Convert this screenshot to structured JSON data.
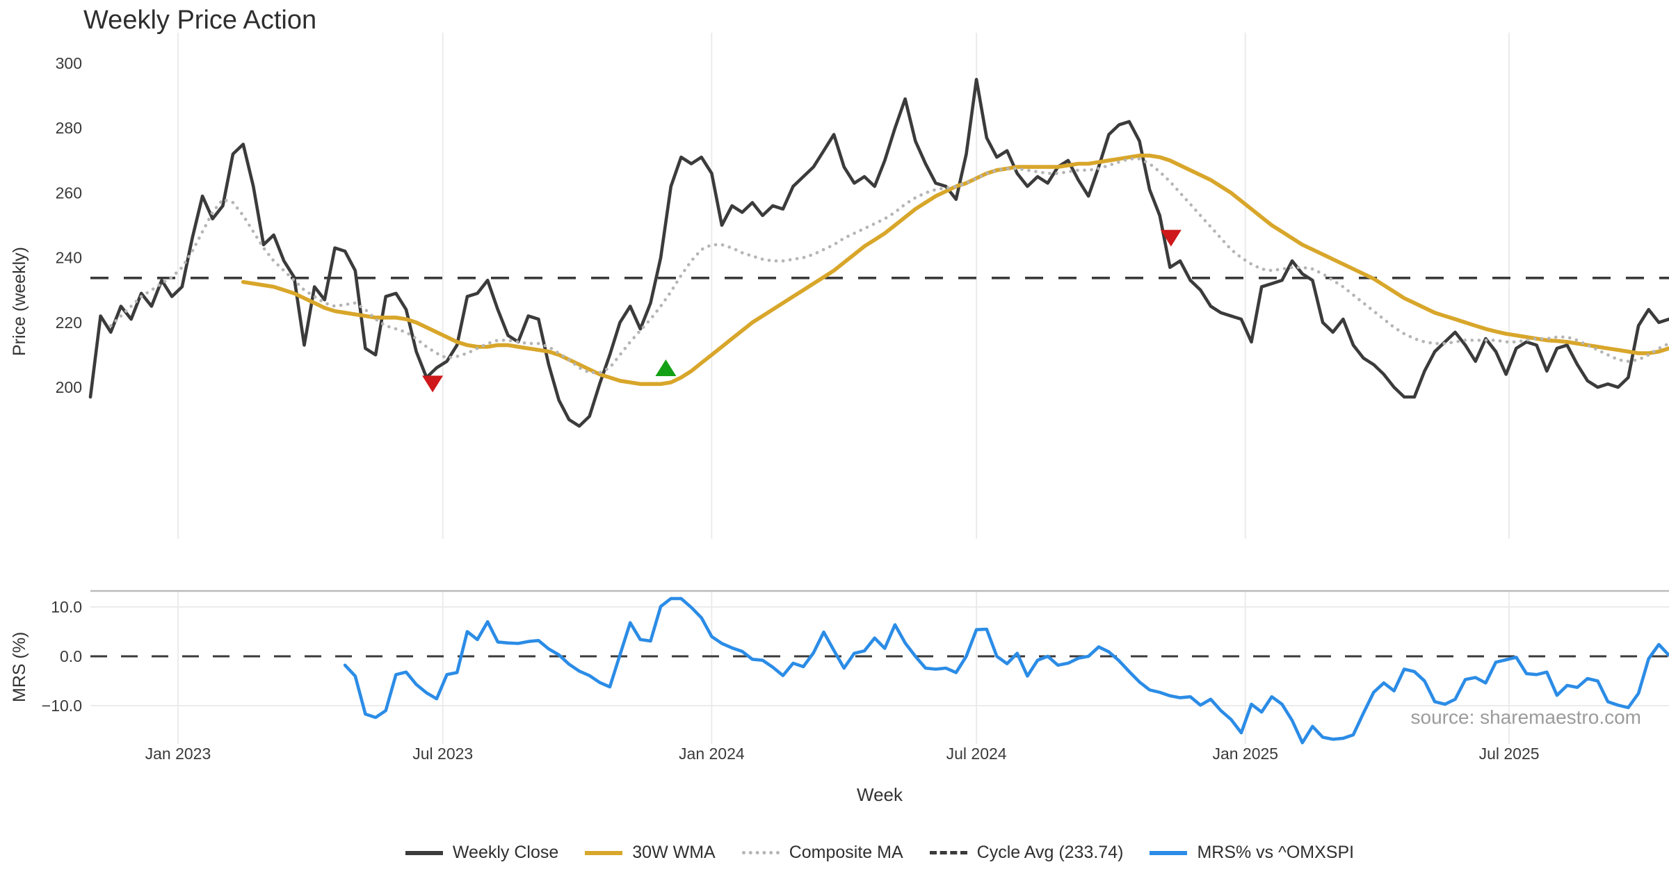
{
  "title": "Weekly Price Action",
  "source_note": "source: sharemaestro.com",
  "colors": {
    "weekly_close": "#3b3b3b",
    "wma": "#d8a62a",
    "composite": "#b5b5b5",
    "cycle_avg": "#3a3a3a",
    "mrs": "#2b8ce6",
    "marker_sell": "#ce181b",
    "marker_buy": "#14a014",
    "grid": "#ebebeb",
    "panel_border": "#bbbbbb",
    "tick_text": "#3a3a3a"
  },
  "legend": {
    "items": [
      {
        "label": "Weekly Close",
        "color": "#3b3b3b",
        "style": "solid"
      },
      {
        "label": "30W WMA",
        "color": "#d8a62a",
        "style": "solid"
      },
      {
        "label": "Composite MA",
        "color": "#b5b5b5",
        "style": "dotted"
      },
      {
        "label": "Cycle Avg (233.74)",
        "color": "#3a3a3a",
        "style": "dashed"
      },
      {
        "label": "MRS% vs ^OMXSPI",
        "color": "#2b8ce6",
        "style": "solid"
      }
    ]
  },
  "chart_data": {
    "type": "line",
    "title": "Weekly Price Action",
    "xlabel": "Week",
    "x_axis": {
      "tick_labels": [
        "Jan 2023",
        "Jul 2023",
        "Jan 2024",
        "Jul 2024",
        "Jan 2025",
        "Jul 2025"
      ],
      "tick_weeks": [
        8.6,
        34.6,
        61.0,
        87.0,
        113.4,
        139.3
      ],
      "weeks_total": 155
    },
    "panels": [
      {
        "name": "price",
        "ylabel": "Price (weekly)",
        "ylim": [
          190,
          300
        ],
        "yticks": [
          300,
          280,
          260,
          240,
          220,
          200
        ],
        "ytick_labels": [
          "300",
          "280",
          "260",
          "240",
          "220",
          "200"
        ],
        "cycle_avg": 233.74,
        "series": [
          {
            "name": "Weekly Close",
            "style": "solid",
            "color": "#3b3b3b",
            "start_week": 0,
            "values": [
              197,
              222,
              217,
              225,
              221,
              229,
              225,
              233,
              228,
              231,
              246,
              259,
              252,
              256,
              272,
              275,
              262,
              244,
              247,
              239,
              234,
              213,
              231,
              227,
              243,
              242,
              236,
              212,
              210,
              228,
              229,
              224,
              211,
              203,
              206,
              208,
              213,
              228,
              229,
              233,
              224,
              216,
              214,
              222,
              221,
              207,
              196,
              190,
              188,
              191,
              201,
              210,
              220,
              225,
              218,
              226,
              240,
              262,
              271,
              269,
              271,
              266,
              250,
              256,
              254,
              257,
              253,
              256,
              255,
              262,
              265,
              268,
              273,
              278,
              268,
              263,
              265,
              262,
              270,
              280,
              289,
              276,
              269,
              263,
              262,
              258,
              272,
              295,
              277,
              271,
              273,
              266,
              262,
              265,
              263,
              268,
              270,
              264,
              259,
              268,
              278,
              281,
              282,
              276,
              261,
              253,
              237,
              239,
              233,
              230,
              225,
              223,
              222,
              221,
              214,
              231,
              232,
              233,
              239,
              235,
              233,
              220,
              217,
              221,
              213,
              209,
              207,
              204,
              200,
              197,
              197,
              205,
              211,
              214,
              217,
              213,
              208,
              215,
              211,
              204,
              212,
              214,
              213,
              205,
              212,
              213,
              207,
              202,
              200,
              201,
              200,
              203,
              219,
              224,
              220,
              221
            ]
          },
          {
            "name": "30W WMA",
            "style": "solid",
            "color": "#d8a62a",
            "start_week": 15,
            "values": [
              232.5,
              232,
              231.5,
              231,
              230,
              229,
              227.5,
              226,
              224.5,
              223.5,
              223,
              222.5,
              222,
              221.5,
              221.5,
              221.5,
              221,
              220,
              218.5,
              217,
              215.5,
              214,
              213,
              212.5,
              212.5,
              213,
              213,
              212.5,
              212,
              211.5,
              211,
              210,
              208.5,
              207,
              205.5,
              204,
              203,
              202,
              201.5,
              201,
              201,
              201,
              201.5,
              203,
              205,
              207.5,
              210,
              212.5,
              215,
              217.5,
              220,
              222,
              224,
              226,
              228,
              230,
              232,
              234,
              236,
              238.5,
              241,
              243.5,
              245.5,
              247.5,
              250,
              252.5,
              255,
              257,
              259,
              260.5,
              262,
              263,
              264.5,
              266,
              267,
              267.5,
              268,
              268,
              268,
              268,
              268,
              268.5,
              269,
              269,
              269.5,
              270,
              270.5,
              271,
              271.5,
              271.5,
              271,
              270,
              268.5,
              267,
              265.5,
              264,
              262,
              260,
              257.5,
              255,
              252.5,
              250,
              248,
              246,
              244,
              242.5,
              241,
              239.5,
              238,
              236.5,
              235,
              233.5,
              231.5,
              229.5,
              227.5,
              226,
              224.5,
              223,
              222,
              221,
              220,
              219,
              218,
              217.2,
              216.5,
              216,
              215.5,
              215,
              214.5,
              214.3,
              214,
              213.5,
              213,
              212.5,
              212,
              211.5,
              211,
              210.5,
              210.5,
              211,
              212
            ]
          },
          {
            "name": "Composite MA",
            "style": "dotted",
            "color": "#b5b5b5",
            "start_week": 2,
            "values": [
              219,
              222,
              225,
              228,
              230,
              232,
              234,
              237,
              242,
              248,
              254,
              258,
              257,
              253,
              248,
              243,
              239,
              236,
              233,
              230,
              228,
              226,
              225,
              225.5,
              226,
              224,
              221,
              219,
              218,
              217,
              215,
              212.5,
              210.5,
              209,
              209.5,
              210.5,
              212,
              213.5,
              214.5,
              214.5,
              214,
              213.5,
              213.5,
              212.5,
              210.5,
              208.5,
              206,
              204.5,
              204.5,
              206,
              210,
              214,
              217.5,
              221,
              225,
              229.5,
              234.5,
              239,
              242.5,
              244,
              244,
              243,
              241.5,
              240.5,
              239.5,
              239,
              239,
              239.5,
              240,
              241,
              242.5,
              244,
              246,
              247.5,
              249,
              250.5,
              252,
              254,
              256.5,
              258.5,
              260,
              261,
              261.5,
              262,
              263,
              264.5,
              266,
              267,
              267.5,
              267.5,
              267,
              266.5,
              266,
              266,
              266.5,
              267,
              267,
              267.5,
              268.5,
              269.5,
              270.5,
              270.5,
              269,
              266.5,
              263.5,
              260,
              256.5,
              253,
              249.5,
              246,
              242.5,
              240,
              238,
              236.5,
              236,
              236.5,
              237,
              237,
              236.5,
              235,
              233,
              231,
              228.5,
              226,
              223.5,
              221,
              218.5,
              216.5,
              215,
              214,
              213.5,
              213.5,
              214,
              214.5,
              214.5,
              214.5,
              214.5,
              214,
              214,
              214.5,
              215,
              215,
              215.5,
              215.5,
              214.5,
              213,
              211.5,
              210,
              208.5,
              208,
              208.5,
              210,
              212,
              213.5
            ]
          },
          {
            "name": "Cycle Avg (233.74)",
            "style": "dashed",
            "color": "#3a3a3a",
            "constant": 233.74
          }
        ],
        "markers": [
          {
            "shape": "triangle-down",
            "label": "sell-signal",
            "color": "#ce181b",
            "week": 33.6,
            "price": 201
          },
          {
            "shape": "triangle-up",
            "label": "buy-signal",
            "color": "#14a014",
            "week": 56.5,
            "price": 206
          },
          {
            "shape": "triangle-down",
            "label": "sell-signal",
            "color": "#ce181b",
            "week": 106.1,
            "price": 246
          }
        ]
      },
      {
        "name": "mrs",
        "ylabel": "MRS (%)",
        "ylim": [
          -17.7,
          13.2
        ],
        "yticks": [
          10,
          0,
          -10
        ],
        "ytick_labels": [
          "10.0",
          "0.0",
          "−10.0"
        ],
        "zero_dashed": true,
        "series": [
          {
            "name": "MRS% vs ^OMXSPI",
            "style": "solid",
            "color": "#2b8ce6",
            "start_week": 25,
            "values": [
              -1.8,
              -4.0,
              -11.7,
              -12.4,
              -11.0,
              -3.7,
              -3.2,
              -5.7,
              -7.4,
              -8.6,
              -3.7,
              -3.3,
              5.0,
              3.4,
              7.0,
              2.9,
              2.7,
              2.6,
              3.0,
              3.2,
              1.5,
              0.3,
              -1.6,
              -3.0,
              -3.9,
              -5.3,
              -6.2,
              0.3,
              6.8,
              3.4,
              3.1,
              10.1,
              11.7,
              11.7,
              9.9,
              7.8,
              4.0,
              2.6,
              1.7,
              1.0,
              -0.6,
              -0.8,
              -2.2,
              -3.9,
              -1.4,
              -2.1,
              0.7,
              4.9,
              1.2,
              -2.4,
              0.6,
              1.1,
              3.7,
              1.6,
              6.4,
              2.7,
              0.0,
              -2.4,
              -2.6,
              -2.4,
              -3.3,
              0.0,
              5.4,
              5.5,
              0.0,
              -1.5,
              0.6,
              -4.0,
              -0.8,
              0.0,
              -1.8,
              -1.4,
              -0.4,
              0.0,
              1.9,
              0.9,
              -0.9,
              -3.1,
              -5.2,
              -6.8,
              -7.3,
              -8.0,
              -8.4,
              -8.2,
              -9.9,
              -8.7,
              -11.0,
              -12.8,
              -15.5,
              -9.7,
              -11.3,
              -8.2,
              -9.7,
              -13.0,
              -17.5,
              -14.2,
              -16.4,
              -16.8,
              -16.6,
              -15.9,
              -11.5,
              -7.3,
              -5.4,
              -7.0,
              -2.6,
              -3.1,
              -5.0,
              -9.2,
              -9.7,
              -8.7,
              -4.7,
              -4.3,
              -5.4,
              -1.2,
              -0.7,
              -0.2,
              -3.5,
              -3.7,
              -3.2,
              -7.9,
              -5.9,
              -6.3,
              -4.5,
              -5.0,
              -9.2,
              -9.9,
              -10.4,
              -7.5,
              -0.5,
              2.4,
              0.2
            ]
          }
        ]
      }
    ]
  }
}
